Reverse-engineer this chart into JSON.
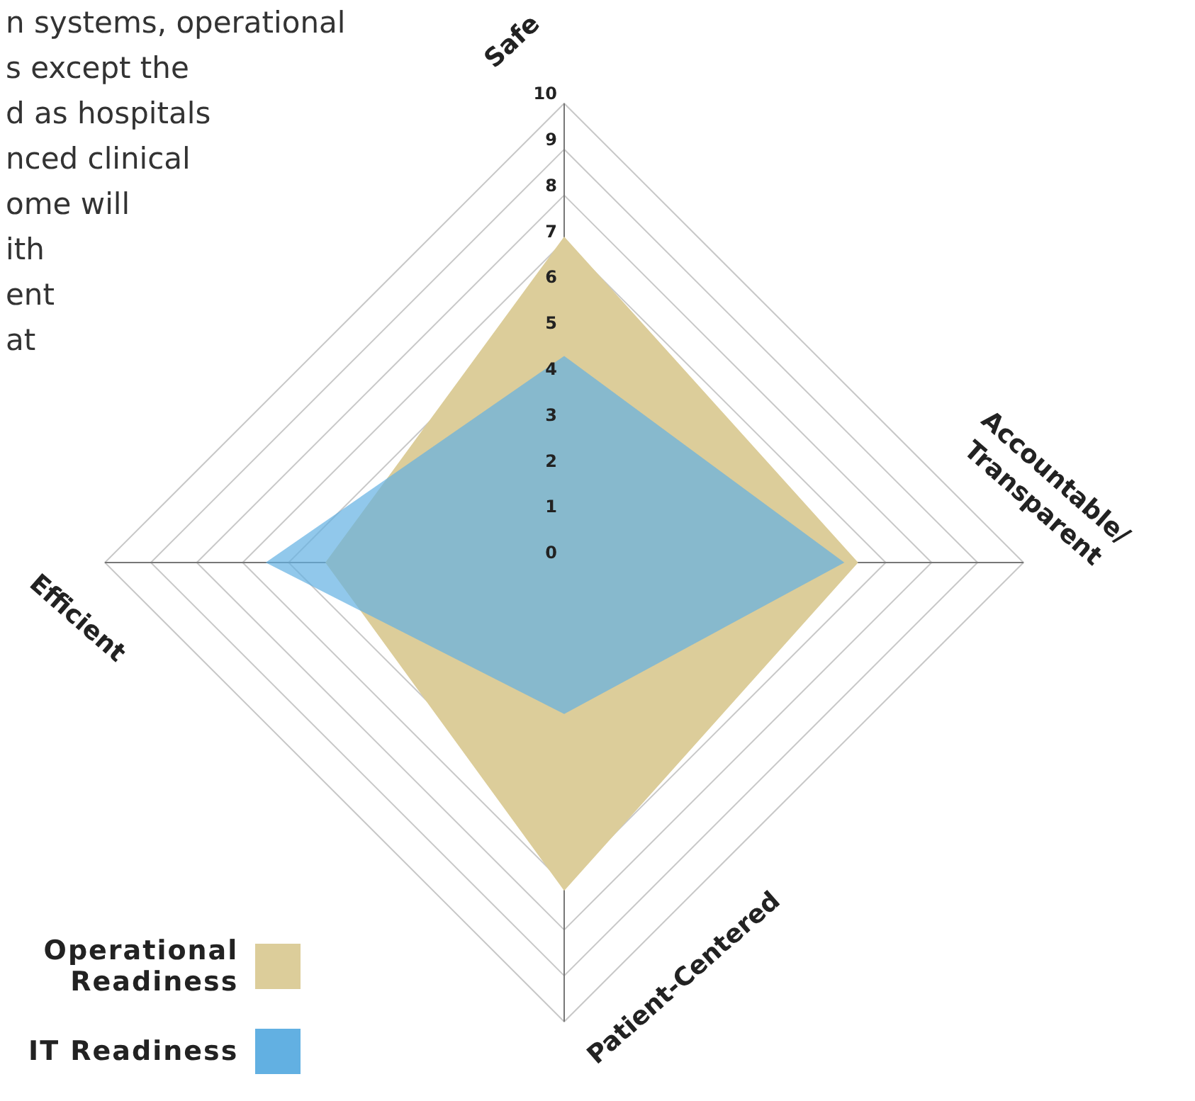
{
  "chart_data": {
    "type": "radar",
    "categories": [
      "Safe",
      "Accountable/\nTransparent",
      "Patient-Centered",
      "Efficient"
    ],
    "series": [
      {
        "name": "Operational Readiness",
        "color": "#dccd9a",
        "values": [
          7.1,
          6.4,
          7.15,
          5.2
        ]
      },
      {
        "name": "IT Readiness",
        "color": "#62b0e2",
        "values": [
          4.5,
          6.1,
          3.3,
          6.5
        ]
      }
    ],
    "ylim": [
      0,
      10
    ],
    "yticks": [
      0,
      1,
      2,
      3,
      4,
      5,
      6,
      7,
      8,
      9,
      10
    ],
    "grid": true,
    "legend": "bottom left",
    "marker": "none",
    "annotations": [
      "n systems, operational\ns except the\nd as hospitals\nnced clinical\nome will\nith\nent\nat"
    ]
  }
}
